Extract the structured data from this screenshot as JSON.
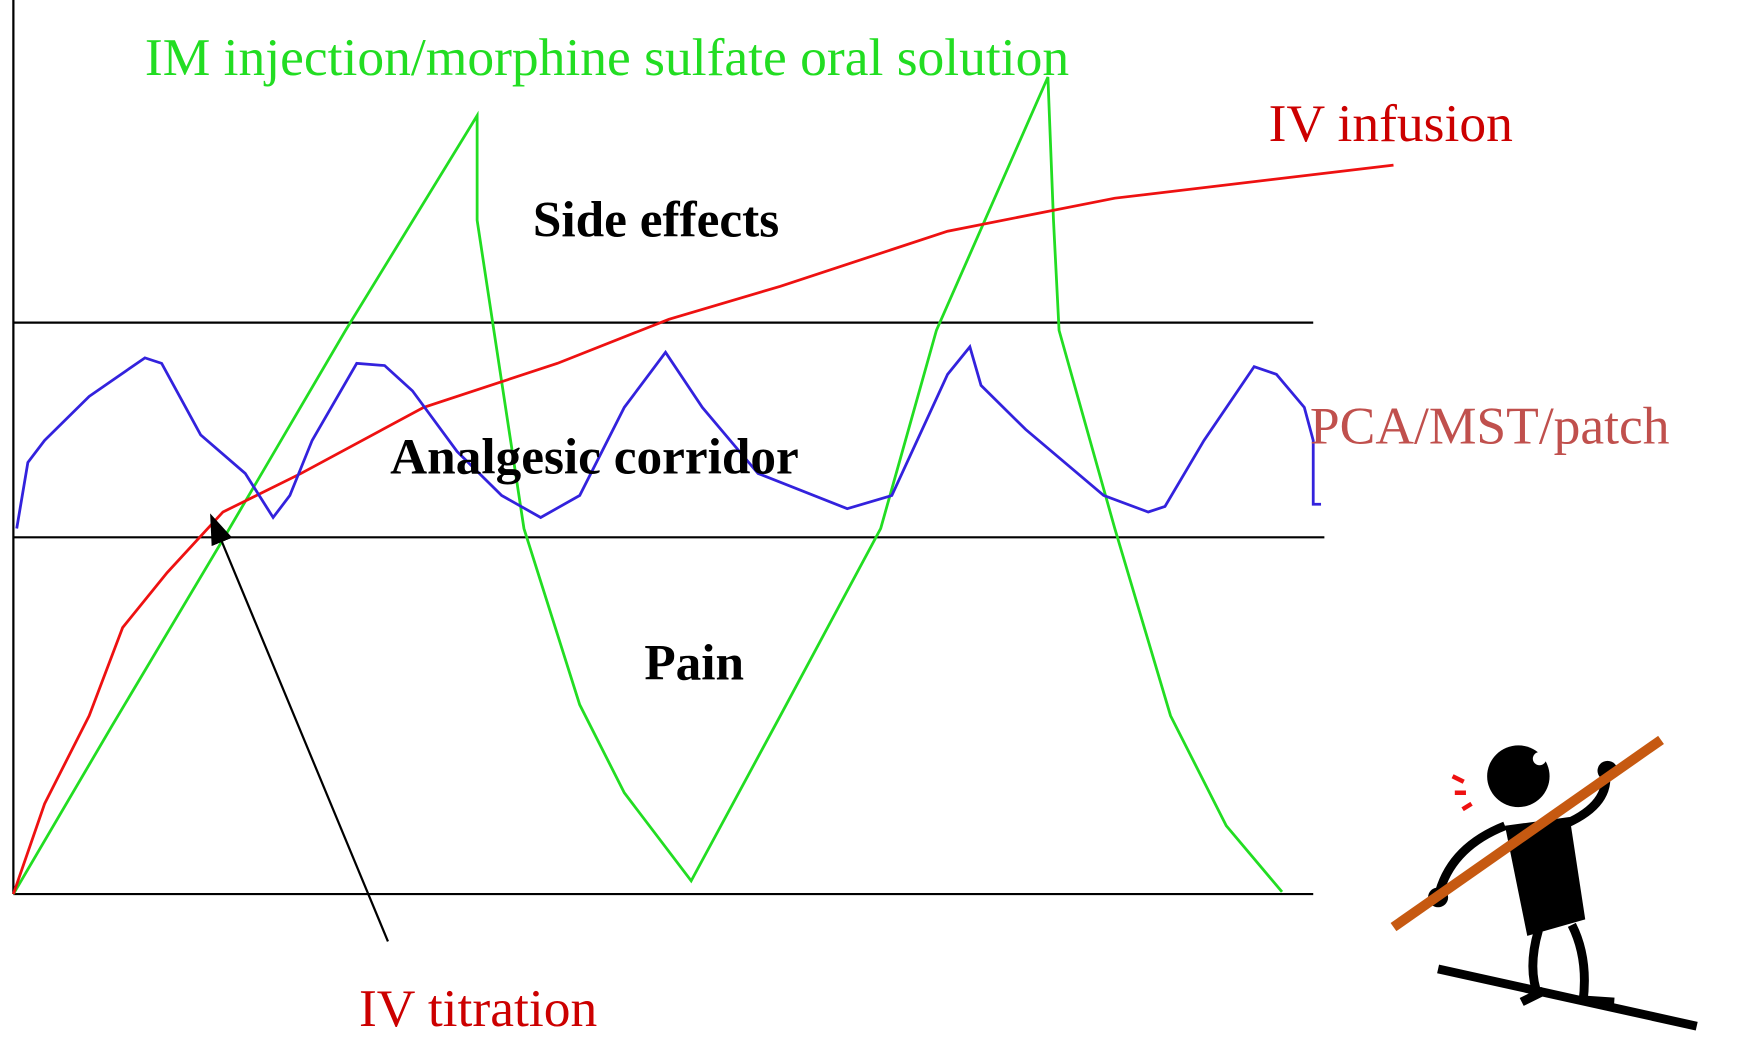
{
  "labels": {
    "im": "IM injection/morphine sulfate oral solution",
    "iv_infusion": "IV infusion",
    "side_effects": "Side effects",
    "analgesic_corridor": "Analgesic corridor",
    "pain": "Pain",
    "pca": "PCA/MST/patch",
    "iv_titration": "IV titration"
  }
}
